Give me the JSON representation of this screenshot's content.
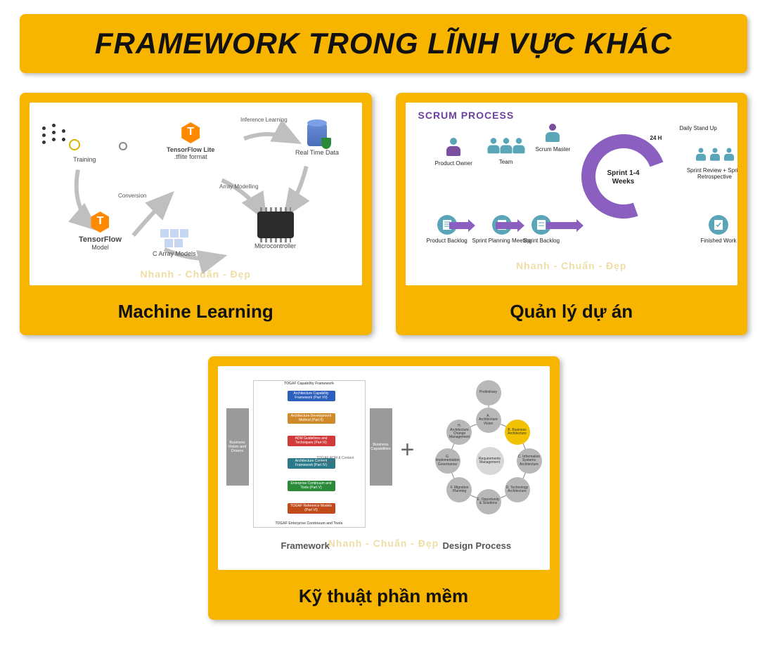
{
  "page": {
    "title": "FRAMEWORK TRONG LĨNH VỰC KHÁC",
    "bg": "#ffffff",
    "accent": "#f7b500",
    "watermark": "Nhanh - Chuẩn - Đẹp"
  },
  "cards": [
    {
      "caption": "Machine Learning"
    },
    {
      "caption": "Quản lý dự án"
    },
    {
      "caption": "Kỹ thuật phần mềm"
    }
  ],
  "ml": {
    "type": "flowchart",
    "nodes": {
      "training": "Training",
      "tf_model": "TensorFlow",
      "tf_sub": "Model",
      "tflite": "TensorFlow Lite",
      "tflite_sub": ".tflite format",
      "c_models": "C Array Models",
      "micro": "Microcontroller",
      "rtd": "Real Time Data"
    },
    "arrows": {
      "conversion": "Conversion",
      "inference": "Inference Learning",
      "array_model": "Array Modelling"
    },
    "colors": {
      "tf_orange": "#ff8a00",
      "db": "#5f86d3",
      "shield": "#2a8a3a",
      "chip": "#2b2b2b",
      "arrow": "#bfbfbf"
    }
  },
  "scrum": {
    "type": "flowchart",
    "title": "SCRUM PROCESS",
    "roles": {
      "po": "Product\nOwner",
      "team": "Team",
      "sm": "Scrum\nMaster"
    },
    "events": {
      "daily": "Daily Stand Up",
      "h24": "24 H",
      "sprint": "Sprint\n1-4 Weeks",
      "review": "Sprint Review\n+\nSprint Retrospective"
    },
    "artifacts": {
      "pb": "Product\nBacklog",
      "spm": "Sprint Planning\nMeeting",
      "sb": "Sprint\nBacklog",
      "fw": "Finished\nWork"
    },
    "colors": {
      "purple": "#8a5fc0",
      "teal": "#5aa6b8",
      "title": "#6b3fa0"
    }
  },
  "togaf": {
    "type": "infographic",
    "header": "TOGAF Capability Framework",
    "footer": "TOGAF Enterprise Continuum and Tools",
    "mid": "TOGAF ADM &\nContent Framework",
    "side_left": "Business\nVision and\nDrivers",
    "side_right": "Business\nCapabilities",
    "blocks": [
      {
        "label": "Architecture Capability\nFramework\n(Part VII)",
        "color": "#2d5fbf",
        "y": 0
      },
      {
        "label": "Architecture\nDevelopment Method\n(Part II)",
        "color": "#d08a2a",
        "y": 1
      },
      {
        "label": "ADM Guidelines and\nTechniques (Part III)",
        "color": "#d23a3a",
        "y": 2
      },
      {
        "label": "Architecture\nContent\nFramework\n(Part IV)",
        "color": "#2a7a8a",
        "y": 3
      },
      {
        "label": "Enterprise Continuum\nand Tools\n(Part V)",
        "color": "#2a8a3a",
        "y": 4
      },
      {
        "label": "TOGAF Reference\nModels (Part VI)",
        "color": "#c04a1a",
        "y": 5
      }
    ],
    "sub_left": "Framework",
    "sub_right": "Design Process"
  },
  "design_process": {
    "type": "network",
    "center": "Requirements\nManagement",
    "top": "Preliminary",
    "nodes": [
      {
        "label": "A.\nArchitecture\nVision",
        "c": "g"
      },
      {
        "label": "B.\nBusiness\nArchitecture",
        "c": "y"
      },
      {
        "label": "C.\nInformation\nSystems\nArchitecture",
        "c": "g"
      },
      {
        "label": "D.\nTechnology\nArchitecture",
        "c": "g"
      },
      {
        "label": "E.\nOpportunity\n&\nSolutions",
        "c": "g"
      },
      {
        "label": "F.\nMigration\nPlanning",
        "c": "g"
      },
      {
        "label": "G.\nImplementation\nGovernance",
        "c": "g"
      },
      {
        "label": "H.\nArchitecture\nChange\nManagement",
        "c": "g"
      }
    ]
  }
}
